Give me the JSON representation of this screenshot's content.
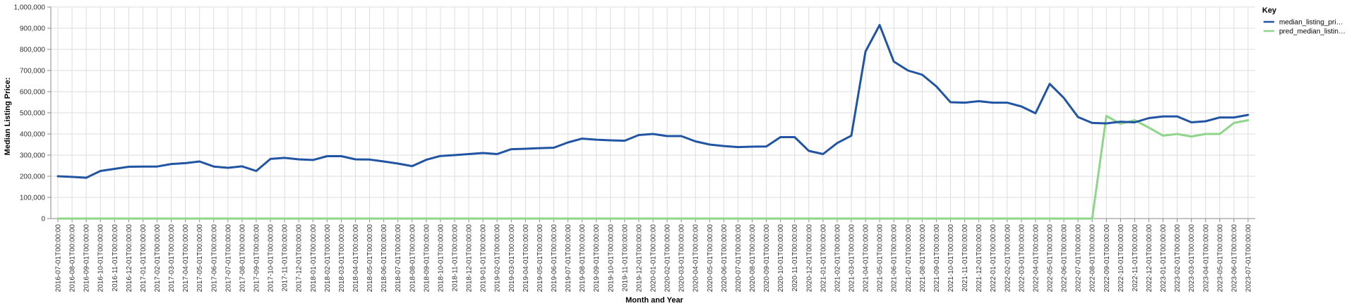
{
  "chart_data": {
    "type": "line",
    "xlabel": "Month and Year",
    "ylabel": "Median Listing Price:",
    "ylim": [
      0,
      1000000
    ],
    "yticks": [
      0,
      100000,
      200000,
      300000,
      400000,
      500000,
      600000,
      700000,
      800000,
      900000,
      1000000
    ],
    "ytick_labels": [
      "0",
      "100,000",
      "200,000",
      "300,000",
      "400,000",
      "500,000",
      "600,000",
      "700,000",
      "800,000",
      "900,000",
      "1,000,000"
    ],
    "grid": true,
    "legend": {
      "title": "Key",
      "placement": "top-right"
    },
    "colors": {
      "median_listing_price": "#2155a3",
      "pred_median_listing_price": "#8fd68a",
      "grid": "#dddddd",
      "axis": "#888888"
    },
    "x": [
      "2016-07-01T00:00:00",
      "2016-08-01T00:00:00",
      "2016-09-01T00:00:00",
      "2016-10-01T00:00:00",
      "2016-11-01T00:00:00",
      "2016-12-01T00:00:00",
      "2017-01-01T00:00:00",
      "2017-02-01T00:00:00",
      "2017-03-01T00:00:00",
      "2017-04-01T00:00:00",
      "2017-05-01T00:00:00",
      "2017-06-01T00:00:00",
      "2017-07-01T00:00:00",
      "2017-08-01T00:00:00",
      "2017-09-01T00:00:00",
      "2017-10-01T00:00:00",
      "2017-11-01T00:00:00",
      "2017-12-01T00:00:00",
      "2018-01-01T00:00:00",
      "2018-02-01T00:00:00",
      "2018-03-01T00:00:00",
      "2018-04-01T00:00:00",
      "2018-05-01T00:00:00",
      "2018-06-01T00:00:00",
      "2018-07-01T00:00:00",
      "2018-08-01T00:00:00",
      "2018-09-01T00:00:00",
      "2018-10-01T00:00:00",
      "2018-11-01T00:00:00",
      "2018-12-01T00:00:00",
      "2019-01-01T00:00:00",
      "2019-02-01T00:00:00",
      "2019-03-01T00:00:00",
      "2019-04-01T00:00:00",
      "2019-05-01T00:00:00",
      "2019-06-01T00:00:00",
      "2019-07-01T00:00:00",
      "2019-08-01T00:00:00",
      "2019-09-01T00:00:00",
      "2019-10-01T00:00:00",
      "2019-11-01T00:00:00",
      "2019-12-01T00:00:00",
      "2020-01-01T00:00:00",
      "2020-02-01T00:00:00",
      "2020-03-01T00:00:00",
      "2020-04-01T00:00:00",
      "2020-05-01T00:00:00",
      "2020-06-01T00:00:00",
      "2020-07-01T00:00:00",
      "2020-08-01T00:00:00",
      "2020-09-01T00:00:00",
      "2020-10-01T00:00:00",
      "2020-11-01T00:00:00",
      "2020-12-01T00:00:00",
      "2021-01-01T00:00:00",
      "2021-02-01T00:00:00",
      "2021-03-01T00:00:00",
      "2021-04-01T00:00:00",
      "2021-05-01T00:00:00",
      "2021-06-01T00:00:00",
      "2021-07-01T00:00:00",
      "2021-08-01T00:00:00",
      "2021-09-01T00:00:00",
      "2021-10-01T00:00:00",
      "2021-11-01T00:00:00",
      "2021-12-01T00:00:00",
      "2022-01-01T00:00:00",
      "2022-02-01T00:00:00",
      "2022-03-01T00:00:00",
      "2022-04-01T00:00:00",
      "2022-05-01T00:00:00",
      "2022-06-01T00:00:00",
      "2022-07-01T00:00:00",
      "2022-08-01T00:00:00",
      "2022-09-01T00:00:00",
      "2022-10-01T00:00:00",
      "2022-11-01T00:00:00",
      "2022-12-01T00:00:00",
      "2023-01-01T00:00:00",
      "2023-02-01T00:00:00",
      "2023-03-01T00:00:00",
      "2023-04-01T00:00:00",
      "2023-05-01T00:00:00",
      "2023-06-01T00:00:00",
      "2023-07-01T00:00:00"
    ],
    "series": [
      {
        "name": "median_listing_pri…",
        "values": [
          200000,
          197000,
          193000,
          225000,
          235000,
          245000,
          246000,
          246000,
          258000,
          262000,
          270000,
          246000,
          240000,
          247000,
          225000,
          282000,
          287000,
          280000,
          277000,
          295000,
          295000,
          280000,
          279000,
          270000,
          260000,
          248000,
          278000,
          296000,
          300000,
          305000,
          310000,
          305000,
          328000,
          330000,
          333000,
          335000,
          360000,
          378000,
          373000,
          370000,
          368000,
          395000,
          400000,
          390000,
          390000,
          365000,
          350000,
          343000,
          338000,
          340000,
          341000,
          385000,
          385000,
          320000,
          305000,
          357000,
          392000,
          790000,
          915000,
          742000,
          700000,
          680000,
          625000,
          550000,
          548000,
          555000,
          548000,
          548000,
          530000,
          498000,
          637000,
          570000,
          480000,
          452000,
          450000,
          458000,
          455000,
          475000,
          483000,
          483000,
          455000,
          460000,
          478000,
          478000,
          490000
        ]
      },
      {
        "name": "pred_median_listin…",
        "values": [
          0,
          0,
          0,
          0,
          0,
          0,
          0,
          0,
          0,
          0,
          0,
          0,
          0,
          0,
          0,
          0,
          0,
          0,
          0,
          0,
          0,
          0,
          0,
          0,
          0,
          0,
          0,
          0,
          0,
          0,
          0,
          0,
          0,
          0,
          0,
          0,
          0,
          0,
          0,
          0,
          0,
          0,
          0,
          0,
          0,
          0,
          0,
          0,
          0,
          0,
          0,
          0,
          0,
          0,
          0,
          0,
          0,
          0,
          0,
          0,
          0,
          0,
          0,
          0,
          0,
          0,
          0,
          0,
          0,
          0,
          0,
          0,
          0,
          0,
          485000,
          448000,
          465000,
          430000,
          392000,
          400000,
          388000,
          400000,
          400000,
          452000,
          465000
        ]
      }
    ]
  }
}
